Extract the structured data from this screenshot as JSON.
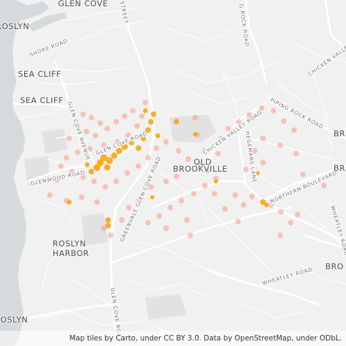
{
  "map": {
    "places": [
      {
        "id": "glen-cove",
        "text": "GLEN COVE"
      },
      {
        "id": "sea-cliff-1",
        "text": "SEA CLIFF"
      },
      {
        "id": "sea-cliff-2",
        "text": "SEA CLIFF"
      },
      {
        "id": "old-brookville-1",
        "text": "OLD"
      },
      {
        "id": "old-brookville-2",
        "text": "BROOKVILLE"
      },
      {
        "id": "roslyn-harbor-1",
        "text": "ROSLYN"
      },
      {
        "id": "roslyn-harbor-2",
        "text": "HARBOR"
      },
      {
        "id": "roslyn-top",
        "text": "ROSLYN"
      },
      {
        "id": "roslyn-bottom",
        "text": "ROSLYN"
      },
      {
        "id": "bro-1",
        "text": "BRO"
      },
      {
        "id": "bro-2",
        "text": "BRO"
      },
      {
        "id": "bro-3",
        "text": "BRO"
      }
    ],
    "roads": [
      {
        "id": "shore-road",
        "text": "SHORE ROAD"
      },
      {
        "id": "glen-cove-avenue",
        "text": "GLEN COVE AVENUE"
      },
      {
        "id": "glen-cove-road-1",
        "text": "GLEN COVE ROAD"
      },
      {
        "id": "glenwood-road",
        "text": "GLENWOOD ROAD"
      },
      {
        "id": "greenvale-glen-cove-road",
        "text": "GREENVALE GLEN COVE ROAD"
      },
      {
        "id": "chicken-valley-road-1",
        "text": "CHICKEN VALLEY ROAD"
      },
      {
        "id": "chicken-valley-road-2",
        "text": "CHICKEN VALLEY ROAD"
      },
      {
        "id": "piping-rock-road",
        "text": "PIPING ROCK ROAD"
      },
      {
        "id": "hegemans-lane",
        "text": "HEGEMANS LANE"
      },
      {
        "id": "northern-boulevard",
        "text": "NORTHERN BOULEVARD"
      },
      {
        "id": "wheatley-road-1",
        "text": "WHEATLEY ROAD"
      },
      {
        "id": "wheatley-road-2",
        "text": "WHEATLEY ROAD"
      },
      {
        "id": "glen-cove-road-2",
        "text": "GLEN COVE ROAD"
      },
      {
        "id": "rock-road",
        "text": "G ROCK ROAD"
      },
      {
        "id": "street-top",
        "text": "STREET"
      }
    ],
    "attribution": "Map tiles by Carto, under CC BY 3.0. Data by OpenStreetMap, under ODbL.",
    "colors": {
      "water": "#d4dadc",
      "land": "#f2f2f2",
      "road": "#ffffff",
      "major_road": "#ffffff",
      "park": "#e6e6e6",
      "hotspot": "#ffa000",
      "density_point": "#ff9a86"
    }
  }
}
